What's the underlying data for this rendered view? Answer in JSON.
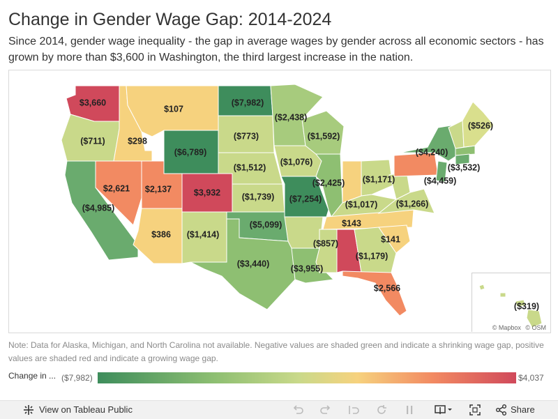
{
  "title": "Change in Gender Wage Gap: 2014-2024",
  "subtitle": "Since 2014, gender wage inequality - the gap in average wages by gender across all economic sectors - has grown by more than $3,600 in Washington, the third largest increase in the nation.",
  "note": "Note: Data for Alaska, Michigan, and North Carolina not available. Negative values are shaded green and indicate a shrinking wage gap, positive values are shaded red and indicate a growing wage gap.",
  "legend": {
    "title": "Change in ...",
    "min_label": "($7,982)",
    "max_label": "$4,037",
    "min_value": -7982,
    "max_value": 4037
  },
  "attribution": {
    "mapbox": "© Mapbox",
    "osm": "© OSM"
  },
  "footer": {
    "tableau_link": "View on Tableau Public",
    "share": "Share"
  },
  "colors": {
    "strong_green": "#3e8d5c",
    "green": "#6aab6e",
    "light_green": "#8ebf72",
    "yellow_green": "#c9d98a",
    "yellow": "#f6d27e",
    "orange": "#f28a62",
    "red": "#d0495b"
  },
  "states": [
    {
      "state": "Washington",
      "label": "$3,660",
      "value": 3660
    },
    {
      "state": "Oregon",
      "label": "($711)",
      "value": -711
    },
    {
      "state": "California",
      "label": "($4,985)",
      "value": -4985
    },
    {
      "state": "Idaho",
      "label": "$298",
      "value": 298
    },
    {
      "state": "Nevada",
      "label": "$2,621",
      "value": 2621
    },
    {
      "state": "Montana",
      "label": "$107",
      "value": 107
    },
    {
      "state": "Wyoming",
      "label": "($6,789)",
      "value": -6789
    },
    {
      "state": "Utah",
      "label": "$2,137",
      "value": 2137
    },
    {
      "state": "Arizona",
      "label": "$386",
      "value": 386
    },
    {
      "state": "Colorado",
      "label": "$3,932",
      "value": 3932
    },
    {
      "state": "New Mexico",
      "label": "($1,414)",
      "value": -1414
    },
    {
      "state": "North Dakota",
      "label": "($7,982)",
      "value": -7982
    },
    {
      "state": "South Dakota",
      "label": "($773)",
      "value": -773
    },
    {
      "state": "Nebraska",
      "label": "($1,512)",
      "value": -1512
    },
    {
      "state": "Kansas",
      "label": "($1,739)",
      "value": -1739
    },
    {
      "state": "Oklahoma",
      "label": "($5,099)",
      "value": -5099
    },
    {
      "state": "Texas",
      "label": "($3,440)",
      "value": -3440
    },
    {
      "state": "Minnesota",
      "label": "($2,438)",
      "value": -2438
    },
    {
      "state": "Iowa",
      "label": "($1,076)",
      "value": -1076
    },
    {
      "state": "Missouri",
      "label": "($7,254)",
      "value": -7254
    },
    {
      "state": "Arkansas",
      "label": "($857)",
      "value": -857
    },
    {
      "state": "Louisiana",
      "label": "($3,955)",
      "value": -3955
    },
    {
      "state": "Wisconsin",
      "label": "($1,592)",
      "value": -1592
    },
    {
      "state": "Illinois",
      "label": "($2,425)",
      "value": -2425
    },
    {
      "state": "Indiana",
      "label": "($1,017)",
      "value": -1017
    },
    {
      "state": "Ohio",
      "label": "($1,171)",
      "value": -1171
    },
    {
      "state": "Kentucky",
      "label": "",
      "value": null
    },
    {
      "state": "Tennessee",
      "label": "$143",
      "value": 143
    },
    {
      "state": "Mississippi",
      "label": "",
      "value": null
    },
    {
      "state": "Alabama",
      "label": "($1,179)",
      "value": -1179
    },
    {
      "state": "Georgia",
      "label": "",
      "value": null
    },
    {
      "state": "Florida",
      "label": "$2,566",
      "value": 2566
    },
    {
      "state": "South Carolina",
      "label": "$141",
      "value": 141
    },
    {
      "state": "Virginia",
      "label": "($1,266)",
      "value": -1266
    },
    {
      "state": "West Virginia",
      "label": "",
      "value": null
    },
    {
      "state": "Pennsylvania",
      "label": "",
      "value": null
    },
    {
      "state": "New York",
      "label": "($4,240)",
      "value": -4240
    },
    {
      "state": "New Jersey",
      "label": "($4,459)",
      "value": -4459
    },
    {
      "state": "Connecticut",
      "label": "($3,532)",
      "value": -3532
    },
    {
      "state": "Maine",
      "label": "($526)",
      "value": -526
    },
    {
      "state": "Hawaii",
      "label": "($319)",
      "value": -319
    }
  ]
}
